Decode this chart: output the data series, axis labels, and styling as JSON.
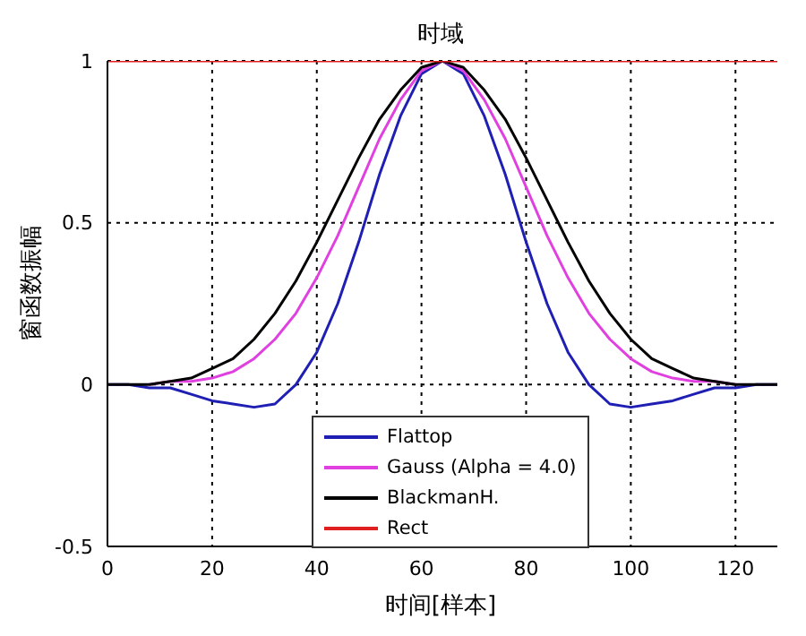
{
  "chart_data": {
    "type": "line",
    "title": "时域",
    "xlabel": "时间[样本]",
    "ylabel": "窗函数振幅",
    "x": [
      0,
      4,
      8,
      12,
      16,
      20,
      24,
      28,
      32,
      36,
      40,
      44,
      48,
      52,
      56,
      60,
      64,
      68,
      72,
      76,
      80,
      84,
      88,
      92,
      96,
      100,
      104,
      108,
      112,
      116,
      120,
      124,
      128
    ],
    "series": [
      {
        "name": "Flattop",
        "color": "#1f1fb4",
        "values": [
          0,
          0,
          -0.01,
          -0.01,
          -0.03,
          -0.05,
          -0.06,
          -0.07,
          -0.06,
          0,
          0.1,
          0.25,
          0.44,
          0.65,
          0.83,
          0.96,
          1,
          0.96,
          0.83,
          0.65,
          0.44,
          0.25,
          0.1,
          0,
          -0.06,
          -0.07,
          -0.06,
          -0.05,
          -0.03,
          -0.01,
          -0.01,
          0,
          0
        ]
      },
      {
        "name": "Gauss (Alpha = 4.0)",
        "color": "#e040e0",
        "values": [
          null,
          null,
          0,
          0.01,
          0.01,
          0.02,
          0.04,
          0.08,
          0.14,
          0.22,
          0.33,
          0.46,
          0.61,
          0.76,
          0.88,
          0.97,
          1,
          0.97,
          0.88,
          0.76,
          0.61,
          0.46,
          0.33,
          0.22,
          0.14,
          0.08,
          0.04,
          0.02,
          0.01,
          0.01,
          0,
          null,
          null
        ]
      },
      {
        "name": "BlackmanH.",
        "color": "#000000",
        "values": [
          0,
          0,
          0,
          0.01,
          0.02,
          0.05,
          0.08,
          0.14,
          0.22,
          0.32,
          0.44,
          0.57,
          0.7,
          0.82,
          0.91,
          0.98,
          1,
          0.98,
          0.91,
          0.82,
          0.7,
          0.57,
          0.44,
          0.32,
          0.22,
          0.14,
          0.08,
          0.05,
          0.02,
          0.01,
          0,
          0,
          0
        ]
      },
      {
        "name": "Rect",
        "color": "#e02020",
        "x": [
          0,
          128
        ],
        "values": [
          1,
          1
        ]
      }
    ],
    "xlim": [
      0,
      128
    ],
    "xticks": [
      0,
      20,
      40,
      60,
      80,
      100,
      120
    ],
    "ylim": [
      -0.5,
      1
    ],
    "yticks": [
      -0.5,
      0,
      0.5,
      1
    ],
    "grid": true,
    "legend": "bottom",
    "line_style": "solid",
    "marker": "none"
  }
}
